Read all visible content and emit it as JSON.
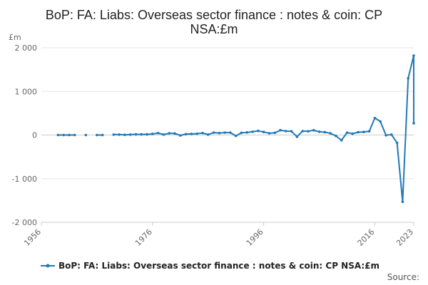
{
  "chart_data": {
    "type": "line",
    "title_lines": [
      "BoP: FA: Liabs: Overseas sector finance : notes & coin: CP",
      "NSA:£m"
    ],
    "y_unit": "£m",
    "ylim": [
      -2000,
      2000
    ],
    "y_ticks": [
      2000,
      1000,
      0,
      -1000,
      -2000
    ],
    "y_tick_labels": [
      "2 000",
      "1 000",
      "0",
      "-1 000",
      "-2 000"
    ],
    "xlim": [
      1956,
      2023
    ],
    "x_ticks": [
      1956,
      1976,
      1996,
      2016,
      2023
    ],
    "x_tick_labels": [
      "1956",
      "1976",
      "1996",
      "2016",
      "2023"
    ],
    "grid": "horizontal",
    "legend_position": "bottom",
    "series": [
      {
        "name": "BoP: FA: Liabs: Overseas sector finance : notes & coin: CP NSA:£m",
        "color": "#1f7ab8",
        "x": [
          1959,
          1960,
          1961,
          1962,
          null,
          1964,
          null,
          1966,
          1967,
          null,
          1969,
          1970,
          1971,
          1972,
          1973,
          1974,
          1975,
          1976,
          1977,
          1978,
          1979,
          1980,
          1981,
          1982,
          1983,
          1984,
          1985,
          1986,
          1987,
          1988,
          1989,
          1990,
          1991,
          1992,
          1993,
          1994,
          1995,
          1996,
          1997,
          1998,
          1999,
          2000,
          2001,
          2002,
          2003,
          2004,
          2005,
          2006,
          2007,
          2008,
          2009,
          2010,
          2011,
          2012,
          2013,
          2014,
          2015,
          2016,
          2017,
          2018,
          2019,
          2020,
          2021,
          2022,
          2023
        ],
        "values": [
          0,
          0,
          0,
          0,
          null,
          0,
          null,
          0,
          0,
          null,
          10,
          10,
          5,
          10,
          15,
          15,
          15,
          25,
          45,
          10,
          40,
          35,
          -10,
          20,
          25,
          30,
          45,
          10,
          55,
          45,
          55,
          55,
          -20,
          50,
          60,
          75,
          95,
          70,
          40,
          50,
          110,
          90,
          85,
          -40,
          90,
          85,
          110,
          75,
          65,
          40,
          -20,
          -120,
          55,
          30,
          65,
          70,
          85,
          390,
          310,
          -5,
          10,
          -180,
          -1530,
          1300,
          1820
        ]
      }
    ],
    "point_2023_end": 270,
    "legend_label": "BoP: FA: Liabs: Overseas sector finance : notes & coin: CP NSA:£m",
    "source_label": "Source:"
  }
}
